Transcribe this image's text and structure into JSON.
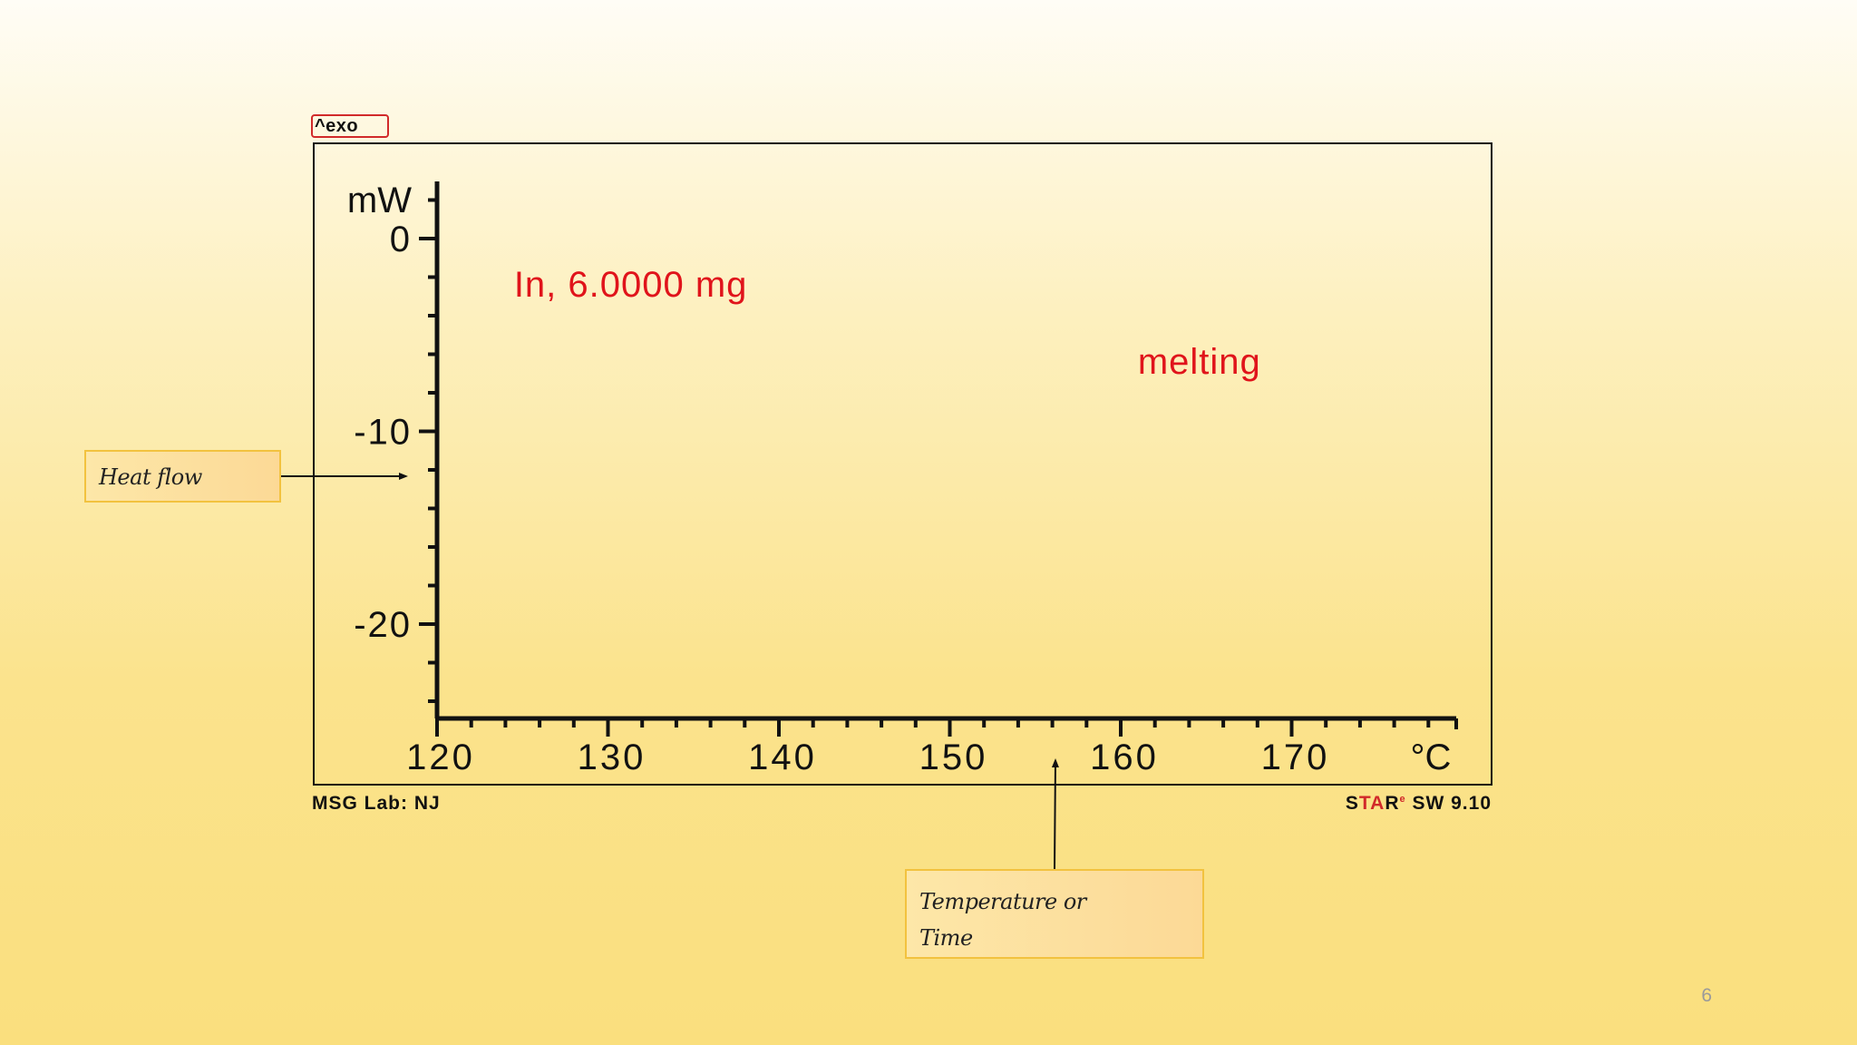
{
  "slide": {
    "exo_label": "^exo",
    "footer_left": "MSG Lab: NJ",
    "footer_right": {
      "prefix": "S",
      "mid": "TA",
      "suffix": "R",
      "mark": "e",
      "version": " SW 9.10"
    },
    "callout_heat_flow": "Heat flow",
    "callout_temperature_line1": "Temperature or",
    "callout_temperature_line2": "Time",
    "page_number": "6"
  },
  "colors": {
    "annotation": "#e0141b",
    "axis": "#111111",
    "callout_border": "#f2c23f"
  },
  "chart_data": {
    "type": "line",
    "title": "",
    "xlabel": "°C",
    "ylabel": "mW",
    "xlim": [
      120,
      180
    ],
    "ylim": [
      -25,
      2
    ],
    "x_ticks": [
      120,
      130,
      140,
      150,
      160,
      170
    ],
    "y_ticks": [
      0,
      -10,
      -20
    ],
    "x_unit_label": "°C",
    "y_unit_label": "mW",
    "series": [],
    "annotations": [
      {
        "text": "In, 6.0000 mg",
        "x": 124.5,
        "y": -3
      },
      {
        "text": "melting",
        "x": 161,
        "y": -7
      }
    ],
    "grid": false,
    "legend": "none"
  }
}
